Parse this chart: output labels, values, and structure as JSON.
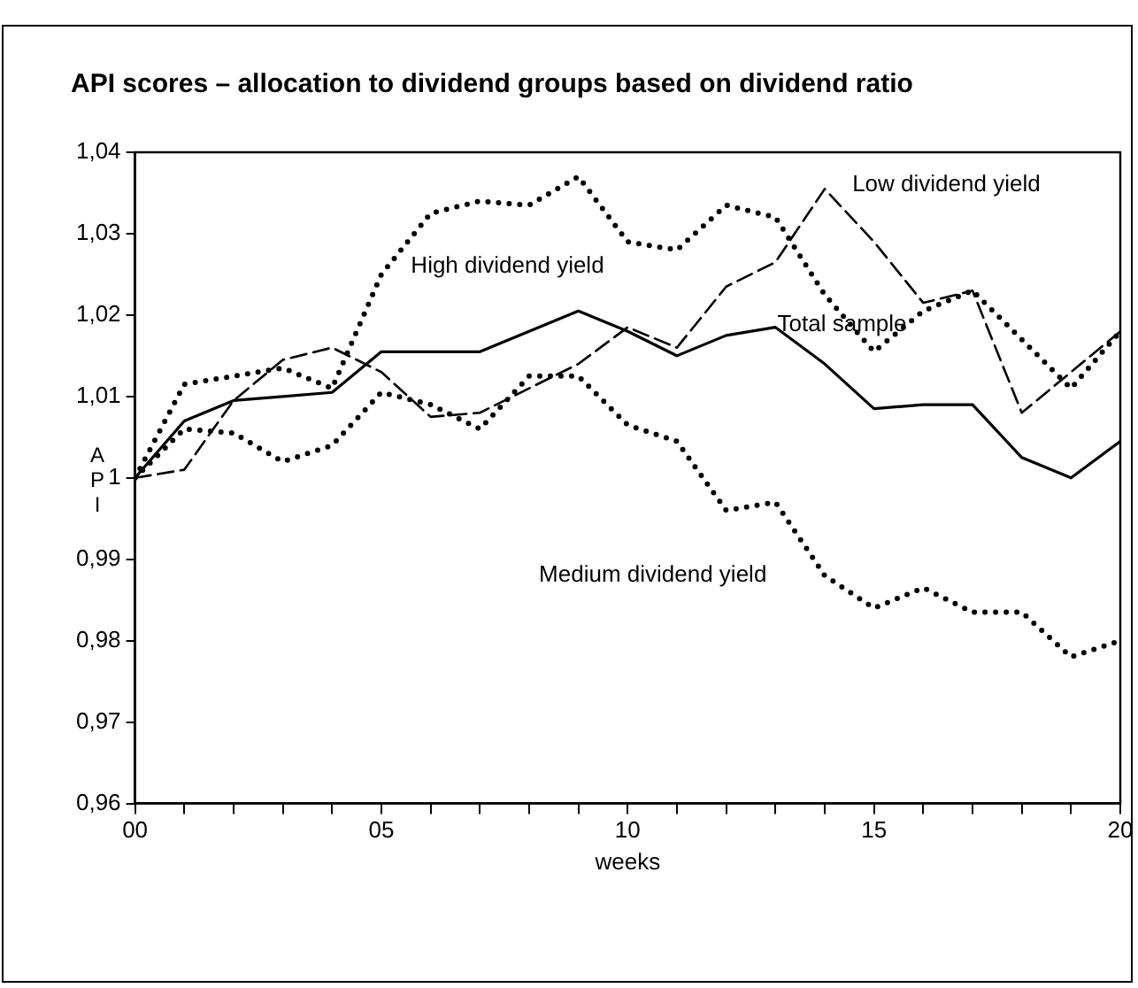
{
  "chart_data": {
    "type": "line",
    "title": "API scores – allocation to dividend groups based on dividend ratio",
    "xlabel": "weeks",
    "ylabel": "API",
    "x": [
      0,
      1,
      2,
      3,
      4,
      5,
      6,
      7,
      8,
      9,
      10,
      11,
      12,
      13,
      14,
      15,
      16,
      17,
      18,
      19,
      20
    ],
    "xlim": [
      0,
      20
    ],
    "xticks": [
      {
        "value": 0,
        "label": "00"
      },
      {
        "value": 1,
        "label": null
      },
      {
        "value": 2,
        "label": null
      },
      {
        "value": 3,
        "label": null
      },
      {
        "value": 4,
        "label": null
      },
      {
        "value": 5,
        "label": "05"
      },
      {
        "value": 6,
        "label": null
      },
      {
        "value": 7,
        "label": null
      },
      {
        "value": 8,
        "label": null
      },
      {
        "value": 9,
        "label": null
      },
      {
        "value": 10,
        "label": "10"
      },
      {
        "value": 11,
        "label": null
      },
      {
        "value": 12,
        "label": null
      },
      {
        "value": 13,
        "label": null
      },
      {
        "value": 14,
        "label": null
      },
      {
        "value": 15,
        "label": "15"
      },
      {
        "value": 16,
        "label": null
      },
      {
        "value": 17,
        "label": null
      },
      {
        "value": 18,
        "label": null
      },
      {
        "value": 19,
        "label": null
      },
      {
        "value": 20,
        "label": "20"
      }
    ],
    "ylim": [
      0.96,
      1.04
    ],
    "yticks": [
      {
        "value": 0.96,
        "label": "0,96"
      },
      {
        "value": 0.97,
        "label": "0,97"
      },
      {
        "value": 0.98,
        "label": "0,98"
      },
      {
        "value": 0.99,
        "label": "0,99"
      },
      1,
      {
        "value": 1.01,
        "label": "1,01"
      },
      {
        "value": 1.02,
        "label": "1,02"
      },
      {
        "value": 1.03,
        "label": "1,03"
      },
      {
        "value": 1.04,
        "label": "1,04"
      }
    ],
    "grid": false,
    "legend": false,
    "marker": "none",
    "series": [
      {
        "name": "Total sample",
        "color": "#000000",
        "line_style": "solid",
        "values": [
          1.0,
          1.007,
          1.0095,
          1.01,
          1.0105,
          1.0155,
          1.0155,
          1.0155,
          1.018,
          1.0205,
          1.018,
          1.015,
          1.0175,
          1.0185,
          1.014,
          1.0085,
          1.009,
          1.009,
          1.0025,
          1.0,
          1.0045
        ]
      },
      {
        "name": "Low dividend yield",
        "color": "#000000",
        "line_style": "dashed",
        "values": [
          1.0,
          1.001,
          1.0095,
          1.0145,
          1.016,
          1.013,
          1.0075,
          1.008,
          1.011,
          1.014,
          1.0185,
          1.016,
          1.0235,
          1.0265,
          1.0355,
          1.029,
          1.0215,
          1.023,
          1.008,
          1.013,
          1.018
        ]
      },
      {
        "name": "High dividend yield",
        "color": "#000000",
        "line_style": "dotted",
        "values": [
          1.0,
          1.0115,
          1.0125,
          1.0135,
          1.011,
          1.025,
          1.0325,
          1.034,
          1.0335,
          1.037,
          1.029,
          1.028,
          1.0335,
          1.032,
          1.0225,
          1.0155,
          1.0205,
          1.023,
          1.017,
          1.011,
          1.018
        ]
      },
      {
        "name": "Medium dividend yield",
        "color": "#000000",
        "line_style": "dotted",
        "values": [
          1.0,
          1.006,
          1.0055,
          1.002,
          1.004,
          1.0105,
          1.009,
          1.006,
          1.0125,
          1.0125,
          1.0065,
          1.0045,
          0.996,
          0.997,
          0.988,
          0.984,
          0.9865,
          0.9835,
          0.9835,
          0.978,
          0.98
        ]
      }
    ]
  }
}
